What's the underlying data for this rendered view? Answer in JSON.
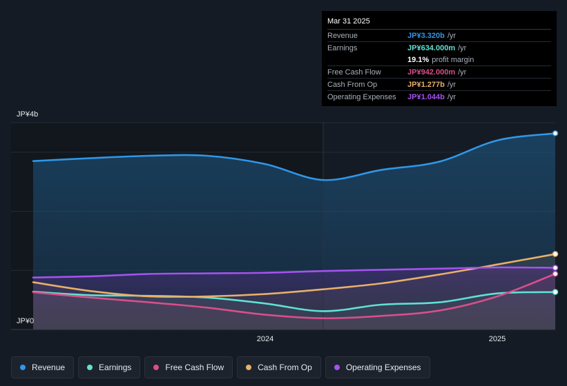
{
  "colors": {
    "revenue": "#2f97e8",
    "earnings": "#5ee3d2",
    "free_cash_flow": "#d94f8a",
    "cash_from_op": "#e8b06a",
    "operating_expenses": "#a552f0"
  },
  "y_axis": {
    "top_label": "JP¥4b",
    "bottom_label": "JP¥0"
  },
  "tooltip": {
    "date": "Mar 31 2025",
    "rows": [
      {
        "label": "Revenue",
        "value": "JP¥3.320b",
        "unit": "/yr"
      },
      {
        "label": "Earnings",
        "value": "JP¥634.000m",
        "unit": "/yr"
      },
      {
        "label": "",
        "value": "19.1%",
        "unit": "profit margin"
      },
      {
        "label": "Free Cash Flow",
        "value": "JP¥942.000m",
        "unit": "/yr"
      },
      {
        "label": "Cash From Op",
        "value": "JP¥1.277b",
        "unit": "/yr"
      },
      {
        "label": "Operating Expenses",
        "value": "JP¥1.044b",
        "unit": "/yr"
      }
    ]
  },
  "legend": [
    {
      "label": "Revenue",
      "key": "revenue"
    },
    {
      "label": "Earnings",
      "key": "earnings"
    },
    {
      "label": "Free Cash Flow",
      "key": "free_cash_flow"
    },
    {
      "label": "Cash From Op",
      "key": "cash_from_op"
    },
    {
      "label": "Operating Expenses",
      "key": "operating_expenses"
    }
  ],
  "chart_data": {
    "type": "area",
    "y_unit": "JP¥ billions",
    "ylim": [
      0,
      3.5
    ],
    "xlim": [
      2023.0,
      2025.25
    ],
    "x_ticks": [
      {
        "value": 2024.0,
        "label": "2024"
      },
      {
        "value": 2025.0,
        "label": "2025"
      }
    ],
    "highlight_from": 2024.25,
    "series": [
      {
        "name": "Revenue",
        "key": "revenue",
        "x": [
          2023.0,
          2023.25,
          2023.5,
          2023.75,
          2024.0,
          2024.25,
          2024.5,
          2024.75,
          2025.0,
          2025.25
        ],
        "y": [
          2.85,
          2.9,
          2.94,
          2.94,
          2.8,
          2.53,
          2.7,
          2.84,
          3.2,
          3.32
        ]
      },
      {
        "name": "Earnings",
        "key": "earnings",
        "x": [
          2023.0,
          2023.25,
          2023.5,
          2023.75,
          2024.0,
          2024.25,
          2024.5,
          2024.75,
          2025.0,
          2025.25
        ],
        "y": [
          0.64,
          0.58,
          0.57,
          0.54,
          0.44,
          0.31,
          0.42,
          0.46,
          0.61,
          0.634
        ]
      },
      {
        "name": "Free Cash Flow",
        "key": "free_cash_flow",
        "x": [
          2023.0,
          2023.25,
          2023.5,
          2023.75,
          2024.0,
          2024.25,
          2024.5,
          2024.75,
          2025.0,
          2025.25
        ],
        "y": [
          0.63,
          0.54,
          0.46,
          0.37,
          0.25,
          0.19,
          0.23,
          0.32,
          0.56,
          0.942
        ]
      },
      {
        "name": "Cash From Op",
        "key": "cash_from_op",
        "x": [
          2023.0,
          2023.25,
          2023.5,
          2023.75,
          2024.0,
          2024.25,
          2024.5,
          2024.75,
          2025.0,
          2025.25
        ],
        "y": [
          0.8,
          0.65,
          0.56,
          0.56,
          0.6,
          0.68,
          0.78,
          0.93,
          1.1,
          1.277
        ]
      },
      {
        "name": "Operating Expenses",
        "key": "operating_expenses",
        "x": [
          2023.0,
          2023.25,
          2023.5,
          2023.75,
          2024.0,
          2024.25,
          2024.5,
          2024.75,
          2025.0,
          2025.25
        ],
        "y": [
          0.88,
          0.9,
          0.94,
          0.95,
          0.96,
          0.99,
          1.01,
          1.03,
          1.05,
          1.044
        ]
      }
    ]
  }
}
